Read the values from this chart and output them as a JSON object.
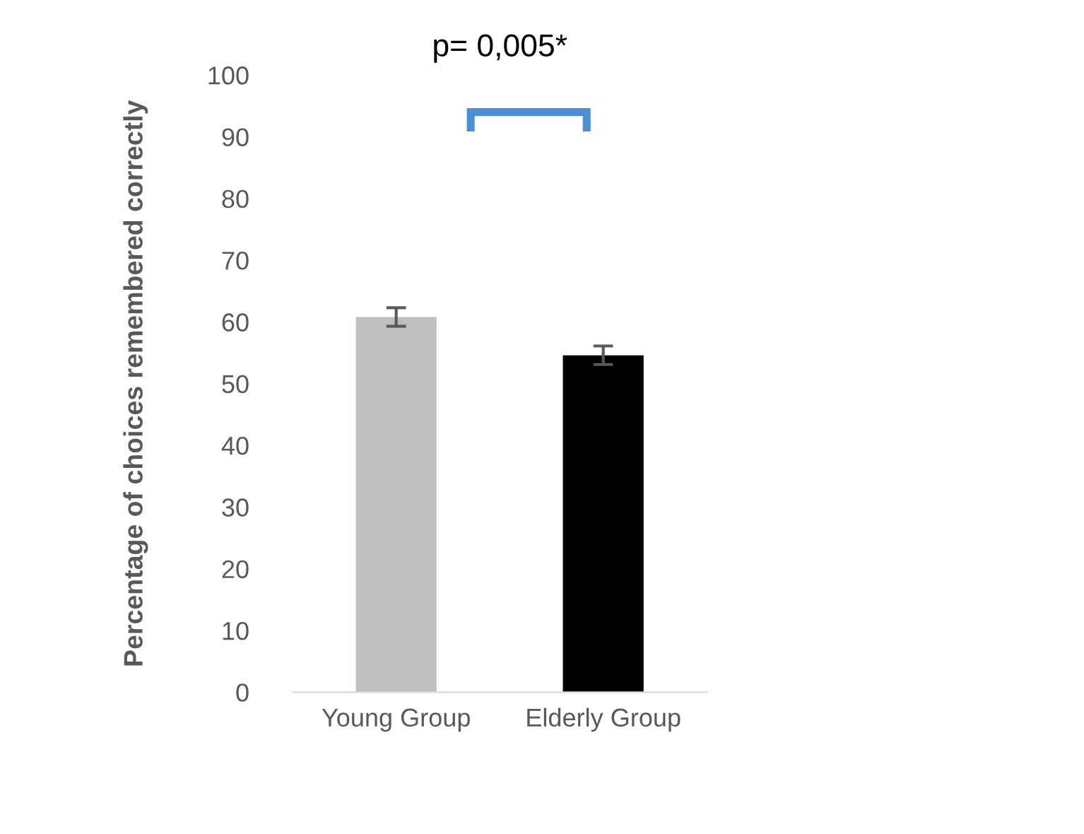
{
  "chart_data": {
    "type": "bar",
    "ylabel": "Percentage of choices remembered correctly",
    "categories": [
      "Young Group",
      "Elderly Group"
    ],
    "values": [
      60.8,
      54.6
    ],
    "colors": [
      "#bfbfbf",
      "#000000"
    ],
    "errors": [
      1.5,
      1.5
    ],
    "ylim": [
      0,
      100
    ],
    "yticks": [
      0,
      10,
      20,
      30,
      40,
      50,
      60,
      70,
      80,
      90,
      100
    ],
    "annotations": [
      "p= 0,005*"
    ]
  }
}
